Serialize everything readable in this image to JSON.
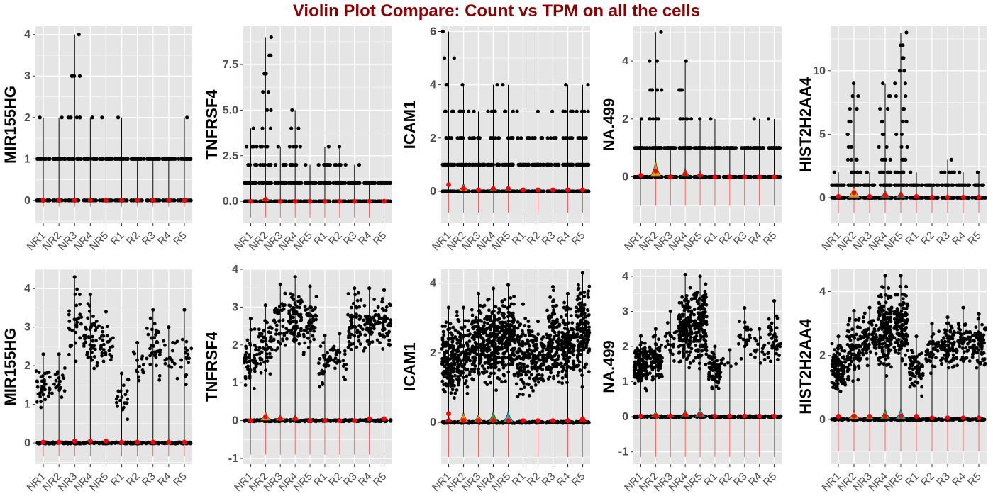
{
  "title": "Violin Plot Compare: Count vs TPM on all the cells",
  "colors": {
    "title": "#8b0000",
    "panel_bg": "#e5e5e5",
    "grid": "#ffffff",
    "points": "#000000",
    "median": "#ff0000",
    "fill_NR2": "#e69f00",
    "fill_NR3": "#c8a000",
    "fill_NR4": "#33a02c",
    "fill_NR5": "#20b2aa"
  },
  "chart_data": [
    {
      "type": "violin",
      "row": "Count",
      "ylabel": "MIR155HG",
      "ylim": [
        -0.55,
        4.2
      ],
      "yticks": [
        0,
        1,
        2,
        3,
        4
      ],
      "ytick_labels": [
        "0",
        "1",
        "2",
        "3",
        "4"
      ],
      "categories": [
        "NR1",
        "NR2",
        "NR3",
        "NR4",
        "NR5",
        "R1",
        "R2",
        "R3",
        "R4",
        "R5"
      ],
      "max_values": [
        2,
        2,
        4,
        2,
        2,
        2,
        1,
        1,
        1,
        2
      ],
      "median_dot": [
        0,
        0,
        0,
        0,
        0,
        0,
        0,
        0,
        0,
        0
      ],
      "fill_peak": [
        0,
        0,
        0,
        0,
        0,
        0,
        0,
        0,
        0,
        0
      ],
      "line_low": -0.15,
      "grid": true,
      "legend": "none"
    },
    {
      "type": "violin",
      "row": "Count",
      "ylabel": "TNFRSF4",
      "ylim": [
        -1.2,
        9.6
      ],
      "yticks": [
        0,
        2.5,
        5,
        7.5
      ],
      "ytick_labels": [
        "0.0",
        "2.5",
        "5.0",
        "7.5"
      ],
      "categories": [
        "NR1",
        "NR2",
        "NR3",
        "NR4",
        "NR5",
        "R1",
        "R2",
        "R3",
        "R4",
        "R5"
      ],
      "max_values": [
        4,
        9,
        3,
        5,
        2,
        3,
        3,
        2,
        1,
        1
      ],
      "median_dot": [
        0,
        0.1,
        0,
        0,
        0,
        0,
        0,
        0,
        0,
        0
      ],
      "fill_peak": [
        0,
        0.3,
        0,
        0,
        0,
        0,
        0,
        0,
        0,
        0
      ],
      "line_low": -0.9,
      "grid": true,
      "legend": "none"
    },
    {
      "type": "violin",
      "row": "Count",
      "ylabel": "ICAM1",
      "ylim": [
        -1.2,
        6.2
      ],
      "yticks": [
        0,
        2,
        4,
        6
      ],
      "ytick_labels": [
        "0",
        "2",
        "4",
        "6"
      ],
      "categories": [
        "NR1",
        "NR2",
        "NR3",
        "NR4",
        "NR5",
        "R1",
        "R2",
        "R3",
        "R4",
        "R5"
      ],
      "max_values": [
        6,
        4,
        3,
        4,
        4,
        3,
        3,
        3,
        4,
        4
      ],
      "median_dot": [
        0.25,
        0.1,
        0.05,
        0.1,
        0.1,
        0.05,
        0.05,
        0.05,
        0.05,
        0.05
      ],
      "fill_peak": [
        0,
        0.3,
        0,
        0.2,
        0.15,
        0,
        0,
        0,
        0,
        0
      ],
      "line_low": -0.8,
      "grid": true,
      "legend": "none"
    },
    {
      "type": "violin",
      "row": "Count",
      "ylabel": "NA.499",
      "ylim": [
        -1.6,
        5.2
      ],
      "yticks": [
        0,
        2,
        4
      ],
      "ytick_labels": [
        "0",
        "2",
        "4"
      ],
      "categories": [
        "NR1",
        "NR2",
        "NR3",
        "NR4",
        "NR5",
        "R1",
        "R2",
        "R3",
        "R4",
        "R5"
      ],
      "max_values": [
        2,
        5,
        1,
        4,
        2,
        2,
        1,
        1,
        2,
        2
      ],
      "median_dot": [
        0.05,
        0.2,
        0,
        0.1,
        0.05,
        0,
        0,
        0,
        0,
        0
      ],
      "fill_peak": [
        0,
        0.6,
        0.1,
        0.3,
        0.2,
        0,
        0,
        0,
        0,
        0
      ],
      "line_low": -1.0,
      "grid": true,
      "legend": "none"
    },
    {
      "type": "violin",
      "row": "Count",
      "ylabel": "HIST2H2AA4",
      "ylim": [
        -2.0,
        13.5
      ],
      "yticks": [
        0,
        5,
        10
      ],
      "ytick_labels": [
        "0",
        "5",
        "10"
      ],
      "categories": [
        "NR1",
        "NR2",
        "NR3",
        "NR4",
        "NR5",
        "R1",
        "R2",
        "R3",
        "R4",
        "R5"
      ],
      "max_values": [
        2,
        9,
        2,
        9,
        13,
        2,
        1,
        3,
        2,
        2
      ],
      "median_dot": [
        0.1,
        0.4,
        0.1,
        0.2,
        0.2,
        0.1,
        0.05,
        0.05,
        0.05,
        0.05
      ],
      "fill_peak": [
        0,
        1.0,
        0,
        0.6,
        0.5,
        0,
        0,
        0,
        0,
        0
      ],
      "line_low": -1.2,
      "grid": true,
      "legend": "none"
    },
    {
      "type": "violin",
      "row": "TPM",
      "ylabel": "MIR155HG",
      "ylim": [
        -0.55,
        4.5
      ],
      "yticks": [
        0,
        1,
        2,
        3,
        4
      ],
      "ytick_labels": [
        "0",
        "1",
        "2",
        "3",
        "4"
      ],
      "categories": [
        "NR1",
        "NR2",
        "NR3",
        "NR4",
        "NR5",
        "R1",
        "R2",
        "R3",
        "R4",
        "R5"
      ],
      "max_values": [
        2.3,
        2.3,
        4.3,
        3.85,
        3.4,
        1.8,
        2.6,
        3.45,
        3.0,
        3.45
      ],
      "cloud_low": [
        0.6,
        0.8,
        1.5,
        1.5,
        1.7,
        0.45,
        1.5,
        1.5,
        1.45,
        1.3
      ],
      "cloud_n": [
        35,
        20,
        30,
        45,
        30,
        20,
        15,
        35,
        15,
        18
      ],
      "median_dot": [
        0.02,
        0.02,
        0.05,
        0.05,
        0.05,
        0.02,
        0.02,
        0.02,
        0.02,
        0.02
      ],
      "fill_peak": [
        0,
        0,
        0,
        0,
        0,
        0,
        0,
        0,
        0,
        0
      ],
      "line_low": -0.35,
      "grid": true,
      "legend": "none"
    },
    {
      "type": "violin",
      "row": "TPM",
      "ylabel": "TNFRSF4",
      "ylim": [
        -1.15,
        4.0
      ],
      "yticks": [
        -1,
        0,
        1,
        2,
        3,
        4
      ],
      "ytick_labels": [
        "-1",
        "0",
        "1",
        "2",
        "3",
        "4"
      ],
      "categories": [
        "NR1",
        "NR2",
        "NR3",
        "NR4",
        "NR5",
        "R1",
        "R2",
        "R3",
        "R4",
        "R5"
      ],
      "max_values": [
        2.7,
        3.05,
        3.6,
        3.8,
        3.55,
        2.25,
        2.3,
        3.5,
        3.5,
        3.45
      ],
      "cloud_low": [
        0.6,
        0.9,
        1.6,
        1.6,
        1.6,
        0.7,
        0.9,
        1.5,
        1.5,
        1.7
      ],
      "cloud_n": [
        50,
        55,
        45,
        70,
        50,
        30,
        25,
        55,
        45,
        55
      ],
      "median_dot": [
        0,
        0.1,
        0.05,
        0.05,
        0,
        0,
        0,
        0,
        0.05,
        0.05
      ],
      "fill_peak": [
        0,
        0.25,
        0.15,
        0.15,
        0.05,
        0,
        0,
        0,
        0.05,
        0.05
      ],
      "line_low": -0.9,
      "grid": true,
      "legend": "none"
    },
    {
      "type": "violin",
      "row": "TPM",
      "ylabel": "ICAM1",
      "ylim": [
        -1.2,
        4.4
      ],
      "yticks": [
        0,
        2,
        4
      ],
      "ytick_labels": [
        "0",
        "2",
        "4"
      ],
      "categories": [
        "NR1",
        "NR2",
        "NR3",
        "NR4",
        "NR5",
        "R1",
        "R2",
        "R3",
        "R4",
        "R5"
      ],
      "max_values": [
        3.3,
        3.3,
        3.7,
        3.85,
        3.95,
        3.4,
        2.9,
        3.9,
        3.7,
        4.3
      ],
      "cloud_low": [
        0.3,
        0.6,
        0.7,
        0.8,
        0.8,
        0.3,
        0.7,
        0.8,
        0.8,
        0.8
      ],
      "cloud_n": [
        140,
        110,
        130,
        160,
        150,
        110,
        90,
        140,
        130,
        150
      ],
      "median_dot": [
        0.25,
        0.05,
        0.05,
        0.05,
        0.05,
        0.05,
        0.05,
        0.05,
        0.05,
        0.1
      ],
      "fill_peak": [
        0.15,
        0.3,
        0.25,
        0.35,
        0.35,
        0.1,
        0.05,
        0.1,
        0.15,
        0.2
      ],
      "line_low": -1.0,
      "grid": true,
      "legend": "none"
    },
    {
      "type": "violin",
      "row": "TPM",
      "ylabel": "NA.499",
      "ylim": [
        -1.35,
        4.2
      ],
      "yticks": [
        -1,
        0,
        1,
        2,
        3,
        4
      ],
      "ytick_labels": [
        "-1",
        "0",
        "1",
        "2",
        "3",
        "4"
      ],
      "categories": [
        "NR1",
        "NR2",
        "NR3",
        "NR4",
        "NR5",
        "R1",
        "R2",
        "R3",
        "R4",
        "R5"
      ],
      "max_values": [
        2.3,
        2.5,
        3.0,
        4.05,
        4.0,
        2.0,
        1.9,
        3.1,
        2.5,
        3.3
      ],
      "cloud_low": [
        0.6,
        0.8,
        1.3,
        1.0,
        1.2,
        0.6,
        1.0,
        1.6,
        1.3,
        1.2
      ],
      "cloud_n": [
        130,
        80,
        20,
        160,
        150,
        70,
        5,
        25,
        15,
        40
      ],
      "median_dot": [
        0.02,
        0.02,
        0.02,
        0.05,
        0.05,
        0.02,
        0.02,
        0.02,
        0.02,
        0.02
      ],
      "fill_peak": [
        0,
        0.15,
        0.1,
        0.2,
        0.25,
        0,
        0,
        0,
        0,
        0
      ],
      "line_low": -1.15,
      "grid": true,
      "legend": "none"
    },
    {
      "type": "violin",
      "row": "TPM",
      "ylabel": "HIST2H2AA4",
      "ylim": [
        -1.4,
        4.7
      ],
      "yticks": [
        0,
        2,
        4
      ],
      "ytick_labels": [
        "0",
        "2",
        "4"
      ],
      "categories": [
        "NR1",
        "NR2",
        "NR3",
        "NR4",
        "NR5",
        "R1",
        "R2",
        "R3",
        "R4",
        "R5"
      ],
      "max_values": [
        2.6,
        3.4,
        3.5,
        4.5,
        4.5,
        2.6,
        3.0,
        3.2,
        3.5,
        3.3
      ],
      "cloud_low": [
        0.6,
        1.0,
        1.5,
        1.2,
        1.2,
        0.6,
        1.2,
        1.4,
        1.4,
        1.4
      ],
      "cloud_n": [
        110,
        90,
        70,
        150,
        130,
        70,
        40,
        90,
        60,
        70
      ],
      "median_dot": [
        0.1,
        0.1,
        0.1,
        0.1,
        0.1,
        0.1,
        0.05,
        0.05,
        0.05,
        0.05
      ],
      "fill_peak": [
        0.05,
        0.3,
        0.15,
        0.35,
        0.35,
        0.05,
        0.05,
        0.05,
        0.05,
        0.05
      ],
      "line_low": -1.0,
      "grid": true,
      "legend": "none"
    }
  ]
}
